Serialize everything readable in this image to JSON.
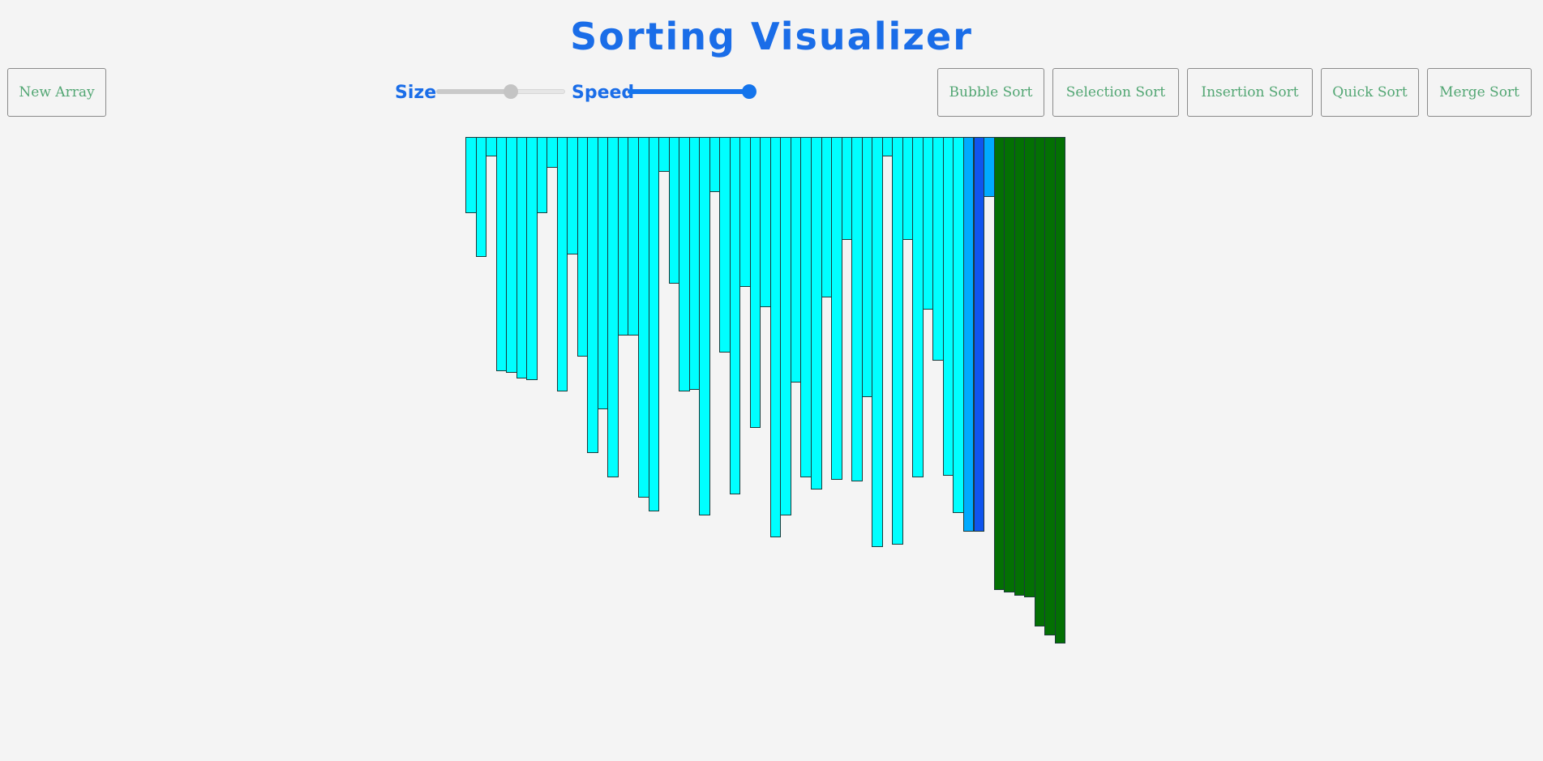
{
  "header": {
    "title": "Sorting Visualizer"
  },
  "toolbar": {
    "new_array_label": "New Array",
    "size_label": "Size",
    "speed_label": "Speed",
    "size_value": 0.58,
    "speed_value": 1.0,
    "algorithms": [
      "Bubble Sort",
      "Selection Sort",
      "Insertion Sort",
      "Quick Sort",
      "Merge Sort"
    ]
  },
  "colors": {
    "title": "#1a6de8",
    "button_text": "#52a673",
    "unsorted_bar": "#00ffff",
    "comparing_bar": "#00aaff",
    "swapping_bar": "#1055ee",
    "sorted_bar": "#037003",
    "slider_active": "#1474ec"
  },
  "chart_data": {
    "type": "bar",
    "values": [
      94,
      148,
      24,
      289,
      291,
      298,
      300,
      94,
      38,
      314,
      145,
      271,
      390,
      336,
      420,
      245,
      245,
      445,
      462,
      43,
      181,
      314,
      312,
      467,
      68,
      266,
      441,
      185,
      359,
      210,
      494,
      467,
      303,
      420,
      435,
      198,
      423,
      127,
      425,
      321,
      506,
      24,
      503,
      127,
      420,
      213,
      276,
      418,
      464,
      487,
      487,
      74,
      559,
      562,
      566,
      568,
      604,
      615,
      625
    ],
    "states": [
      "unsorted",
      "unsorted",
      "unsorted",
      "unsorted",
      "unsorted",
      "unsorted",
      "unsorted",
      "unsorted",
      "unsorted",
      "unsorted",
      "unsorted",
      "unsorted",
      "unsorted",
      "unsorted",
      "unsorted",
      "unsorted",
      "unsorted",
      "unsorted",
      "unsorted",
      "unsorted",
      "unsorted",
      "unsorted",
      "unsorted",
      "unsorted",
      "unsorted",
      "unsorted",
      "unsorted",
      "unsorted",
      "unsorted",
      "unsorted",
      "unsorted",
      "unsorted",
      "unsorted",
      "unsorted",
      "unsorted",
      "unsorted",
      "unsorted",
      "unsorted",
      "unsorted",
      "unsorted",
      "unsorted",
      "unsorted",
      "unsorted",
      "unsorted",
      "unsorted",
      "unsorted",
      "unsorted",
      "unsorted",
      "unsorted",
      "comparing",
      "swapping",
      "comparing",
      "sorted",
      "sorted",
      "sorted",
      "sorted",
      "sorted",
      "sorted",
      "sorted"
    ]
  }
}
